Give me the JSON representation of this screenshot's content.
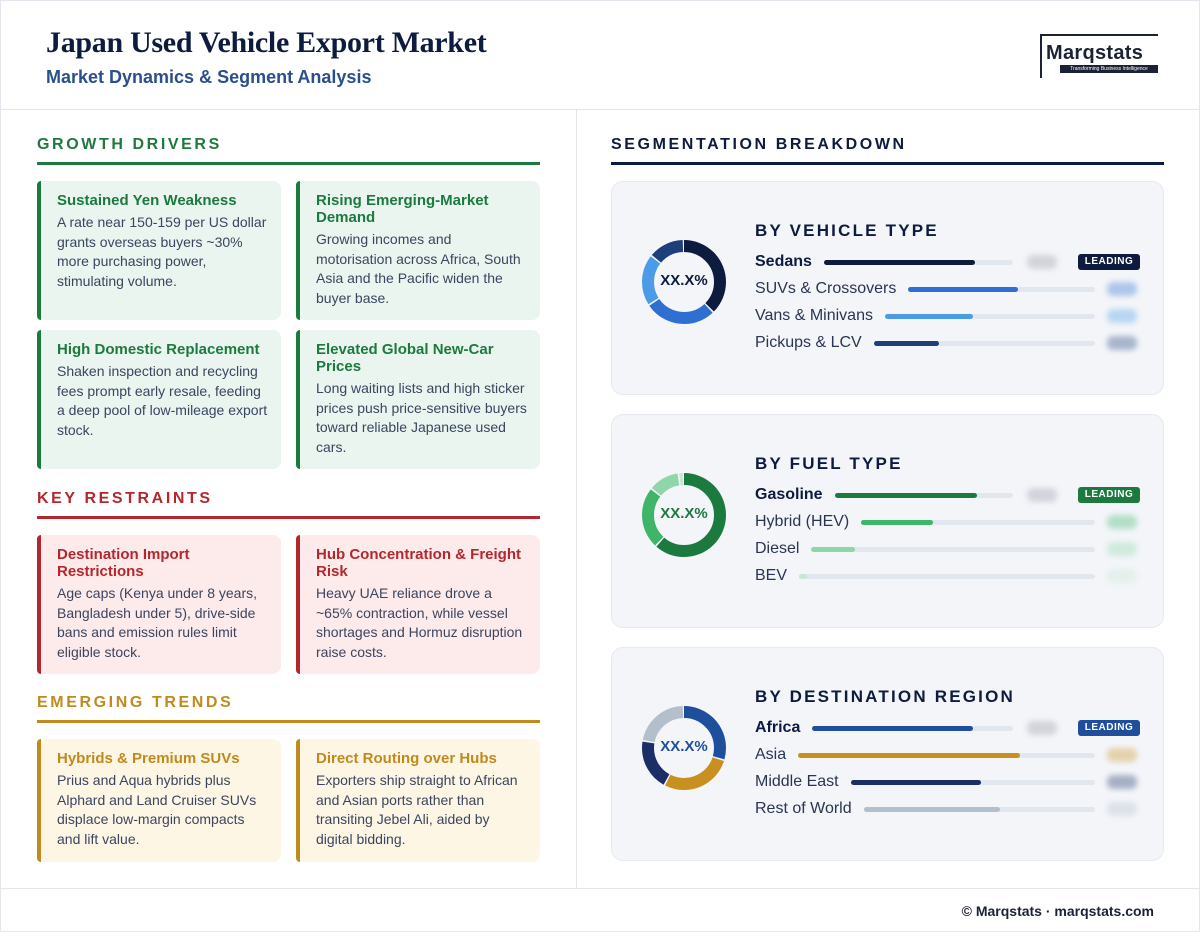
{
  "header": {
    "title": "Japan Used Vehicle Export Market",
    "subtitle": "Market Dynamics & Segment Analysis",
    "logo_name": "Marqstats",
    "logo_tagline": "Transforming Business Intelligence"
  },
  "growth_drivers": {
    "heading": "GROWTH DRIVERS",
    "color": "#1d7a3f",
    "cards": [
      {
        "title": "Sustained Yen Weakness",
        "body": "A rate near 150-159 per US dollar grants overseas buyers ~30% more purchasing power, stimulating volume."
      },
      {
        "title": "Rising Emerging-Market Demand",
        "body": "Growing incomes and motorisation across Africa, South Asia and the Pacific widen the buyer base."
      },
      {
        "title": "High Domestic Replacement",
        "body": "Shaken inspection and recycling fees prompt early resale, feeding a deep pool of low-mileage export stock."
      },
      {
        "title": "Elevated Global New-Car Prices",
        "body": "Long waiting lists and high sticker prices push price-sensitive buyers toward reliable Japanese used cars."
      }
    ]
  },
  "key_restraints": {
    "heading": "KEY RESTRAINTS",
    "color": "#b3272d",
    "cards": [
      {
        "title": "Destination Import Restrictions",
        "body": "Age caps (Kenya under 8 years, Bangladesh under 5), drive-side bans and emission rules limit eligible stock."
      },
      {
        "title": "Hub Concentration & Freight Risk",
        "body": "Heavy UAE reliance drove a ~65% contraction, while vessel shortages and Hormuz disruption raise costs."
      }
    ]
  },
  "emerging_trends": {
    "heading": "EMERGING TRENDS",
    "color": "#c08a1c",
    "cards": [
      {
        "title": "Hybrids & Premium SUVs",
        "body": "Prius and Aqua hybrids plus Alphard and Land Cruiser SUVs displace low-margin compacts and lift value."
      },
      {
        "title": "Direct Routing over Hubs",
        "body": "Exporters ship straight to African and Asian ports rather than transiting Jebel Ali, aided by digital bidding."
      }
    ]
  },
  "segmentation": {
    "heading": "SEGMENTATION BREAKDOWN",
    "leading_label": "LEADING",
    "panels": [
      {
        "title": "BY VEHICLE TYPE",
        "donut_label": "XX.X%",
        "label_color": "#0d1b3e",
        "badge_color": "#0d1b3e",
        "segments": [
          {
            "name": "Sedans",
            "share": 0.38,
            "color": "#0d1b3e",
            "lead": true
          },
          {
            "name": "SUVs & Crossovers",
            "share": 0.28,
            "color": "#2f6fd1"
          },
          {
            "name": "Vans & Minivans",
            "share": 0.2,
            "color": "#4c9be8"
          },
          {
            "name": "Pickups & LCV",
            "share": 0.14,
            "color": "#1f3f7a"
          }
        ]
      },
      {
        "title": "BY FUEL TYPE",
        "donut_label": "XX.X%",
        "label_color": "#1d7a3f",
        "badge_color": "#1d7a3f",
        "segments": [
          {
            "name": "Gasoline",
            "share": 0.62,
            "color": "#1d7a3f",
            "lead": true
          },
          {
            "name": "Hybrid (HEV)",
            "share": 0.24,
            "color": "#3fb56a"
          },
          {
            "name": "Diesel",
            "share": 0.12,
            "color": "#8fd6a8"
          },
          {
            "name": "BEV",
            "share": 0.02,
            "color": "#c8e6d2"
          }
        ]
      },
      {
        "title": "BY DESTINATION REGION",
        "donut_label": "XX.X%",
        "label_color": "#1f4f9c",
        "badge_color": "#1f4f9c",
        "segments": [
          {
            "name": "Africa",
            "share": 0.3,
            "color": "#1f4f9c",
            "lead": true
          },
          {
            "name": "Asia",
            "share": 0.28,
            "color": "#c8901f"
          },
          {
            "name": "Middle East",
            "share": 0.2,
            "color": "#1b2f66"
          },
          {
            "name": "Rest of World",
            "share": 0.22,
            "color": "#b4bfcc"
          }
        ]
      }
    ]
  },
  "footer": {
    "text": "© Marqstats · marqstats.com"
  }
}
